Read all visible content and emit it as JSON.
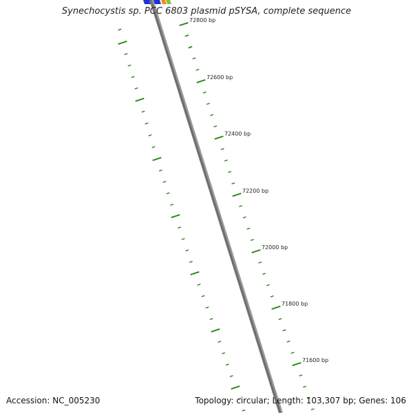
{
  "title": "Synechocystis sp. PCC 6803 plasmid pSYSA, complete sequence",
  "accession": "Accession: NC_005230",
  "summary": "Topology: circular; Length: 103,307 bp; Genes: 106",
  "scale_labels": [
    "72800 bp",
    "72600 bp",
    "72400 bp",
    "72200 bp",
    "72000 bp",
    "71800 bp",
    "71600 bp"
  ],
  "colors": {
    "tick": "#2a8a18",
    "backbone": "#7d7d7d",
    "feature_blue": "#1f32d8",
    "feature_orange": "#f08a1c",
    "feature_green": "#7cc63a"
  }
}
